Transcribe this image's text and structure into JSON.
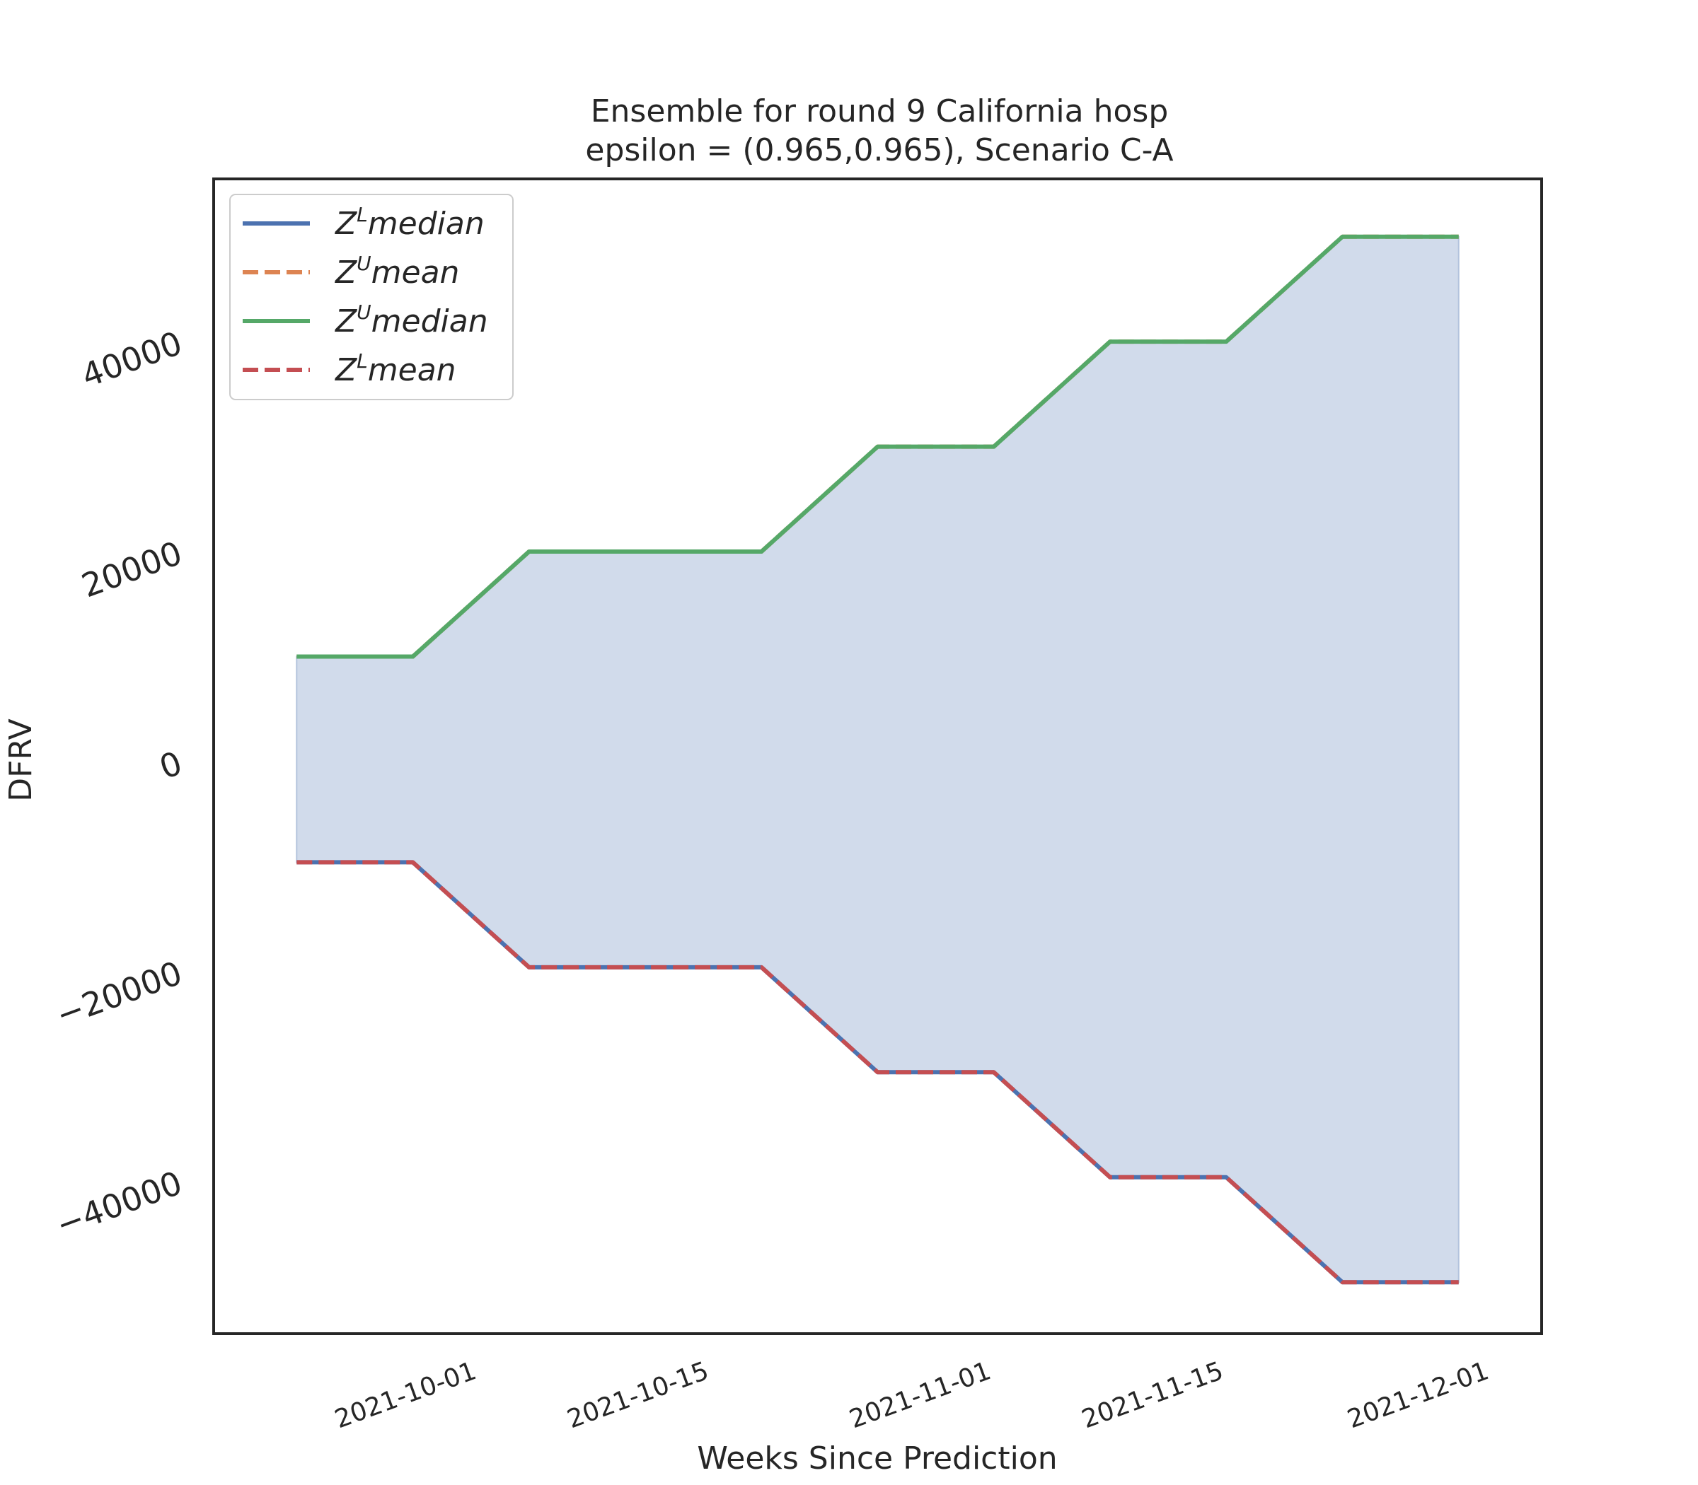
{
  "chart_data": {
    "type": "line",
    "title": [
      "Ensemble for round 9 California  hosp",
      "epsilon = (0.965,0.965), Scenario C-A"
    ],
    "xlabel": "Weeks Since Prediction",
    "ylabel": "DFRV",
    "x": [
      "2021-09-21",
      "2021-09-28",
      "2021-10-05",
      "2021-10-12",
      "2021-10-19",
      "2021-10-26",
      "2021-11-02",
      "2021-11-09",
      "2021-11-16",
      "2021-11-23",
      "2021-11-30"
    ],
    "xticks": [
      "2021-10-01",
      "2021-10-15",
      "2021-11-01",
      "2021-11-15",
      "2021-12-01"
    ],
    "yticks": [
      -40000,
      -20000,
      0,
      20000,
      40000
    ],
    "ytick_labels": [
      "−40000",
      "−20000",
      "0",
      "20000",
      "40000"
    ],
    "xlim": [
      "2021-09-16",
      "2021-12-05"
    ],
    "ylim": [
      -54500,
      55500
    ],
    "grid": false,
    "legend_position": "top-left",
    "series": [
      {
        "name": "median",
        "base": "Z",
        "sup": "L",
        "color": "#4c72b0",
        "dash": "solid",
        "values": [
          -9600,
          -9600,
          -19600,
          -19600,
          -19600,
          -29600,
          -29600,
          -39600,
          -39600,
          -49600,
          -49600
        ]
      },
      {
        "name": "mean",
        "base": "Z",
        "sup": "U",
        "color": "#dd8452",
        "dash": "dashed",
        "values": [
          10000,
          10000,
          20000,
          20000,
          20000,
          30000,
          30000,
          40000,
          40000,
          50000,
          50000
        ]
      },
      {
        "name": "median",
        "base": "Z",
        "sup": "U",
        "color": "#55a868",
        "dash": "solid",
        "values": [
          10000,
          10000,
          20000,
          20000,
          20000,
          30000,
          30000,
          40000,
          40000,
          50000,
          50000
        ]
      },
      {
        "name": "mean",
        "base": "Z",
        "sup": "L",
        "color": "#c44e52",
        "dash": "dashed",
        "values": [
          -9600,
          -9600,
          -19600,
          -19600,
          -19600,
          -29600,
          -29600,
          -39600,
          -39600,
          -49600,
          -49600
        ]
      }
    ],
    "fill_color": "#d1dbeb"
  }
}
